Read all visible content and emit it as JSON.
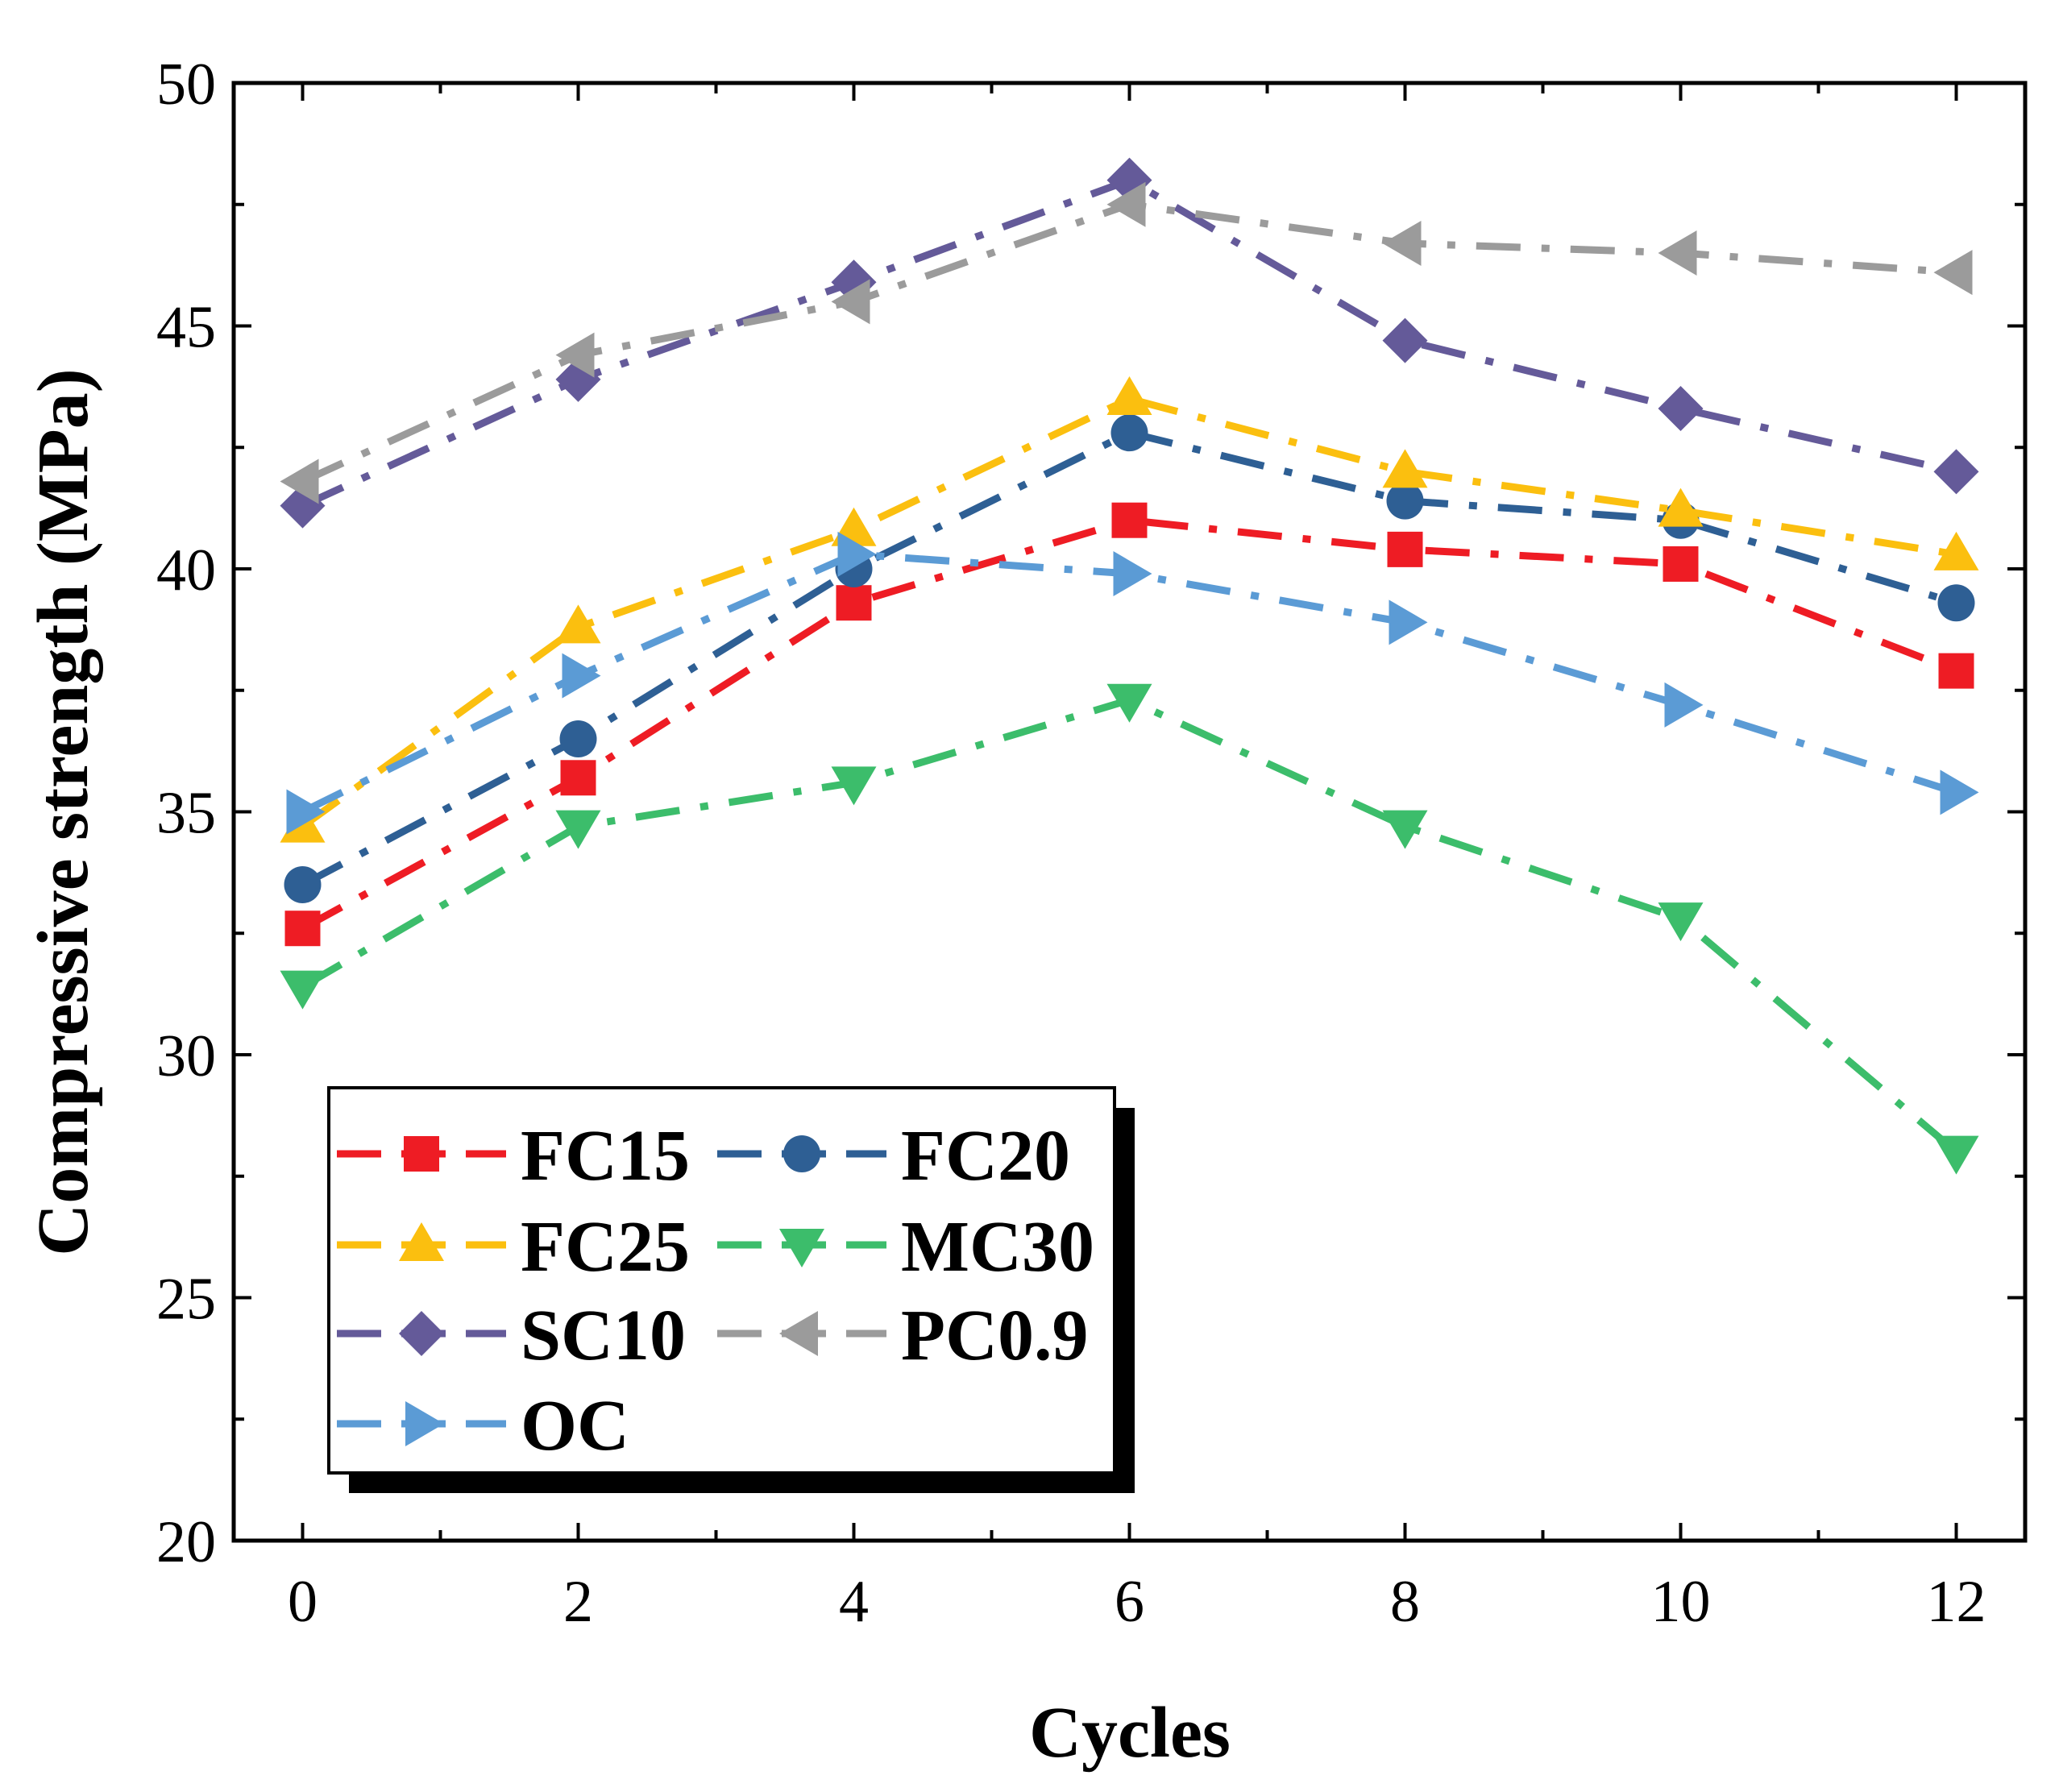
{
  "chart_data": {
    "type": "line",
    "title": "",
    "xlabel": "Cycles",
    "ylabel": "Compressive strength (MPa)",
    "xlim": [
      -0.5,
      12.5
    ],
    "ylim": [
      20,
      50
    ],
    "xticks": [
      0,
      2,
      4,
      6,
      8,
      10,
      12
    ],
    "xtick_labels": [
      "0",
      "2",
      "4",
      "6",
      "8",
      "10",
      "12"
    ],
    "yticks": [
      20,
      25,
      30,
      35,
      40,
      45,
      50
    ],
    "ytick_labels": [
      "20",
      "25",
      "30",
      "35",
      "40",
      "45",
      "50"
    ],
    "grid": false,
    "legend_position": "bottom-left",
    "x": [
      0,
      2,
      4,
      6,
      8,
      10,
      12
    ],
    "series": [
      {
        "name": "FC15",
        "color": "#ee1c24",
        "marker": "square",
        "values": [
          32.6,
          35.7,
          39.3,
          41.0,
          40.4,
          40.1,
          37.9
        ]
      },
      {
        "name": "FC20",
        "color": "#2e5f94",
        "marker": "circle",
        "values": [
          33.5,
          36.5,
          40.0,
          42.8,
          41.4,
          41.0,
          39.3
        ]
      },
      {
        "name": "FC25",
        "color": "#fbbf0f",
        "marker": "triangle-up",
        "values": [
          34.7,
          38.8,
          40.8,
          43.5,
          42.0,
          41.2,
          40.3
        ]
      },
      {
        "name": "MC30",
        "color": "#3cbd6b",
        "marker": "triangle-down",
        "values": [
          31.4,
          34.7,
          35.6,
          37.3,
          34.7,
          32.8,
          28.0
        ]
      },
      {
        "name": "SC10",
        "color": "#645a99",
        "marker": "diamond",
        "values": [
          41.3,
          43.9,
          45.9,
          48.0,
          44.7,
          43.3,
          42.0
        ]
      },
      {
        "name": "PC0.9",
        "color": "#9b9b9b",
        "marker": "triangle-left",
        "values": [
          41.8,
          44.4,
          45.5,
          47.5,
          46.7,
          46.5,
          46.1
        ]
      },
      {
        "name": "OC",
        "color": "#5b9bd5",
        "marker": "triangle-right",
        "values": [
          35.0,
          37.8,
          40.3,
          39.9,
          38.9,
          37.2,
          35.4
        ]
      }
    ]
  }
}
